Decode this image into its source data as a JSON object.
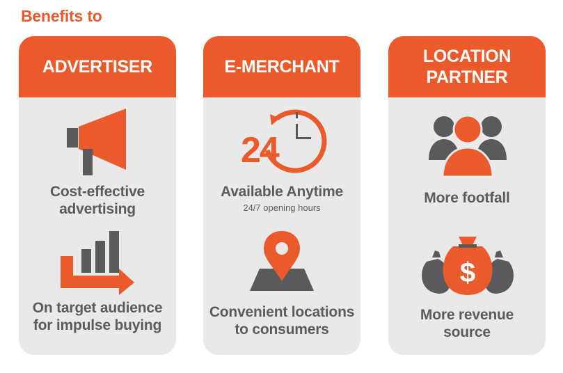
{
  "page": {
    "title": "Benefits to"
  },
  "colors": {
    "accent": "#ea5a2b",
    "card_bg": "#e9e9e9",
    "text": "#5b5c5e",
    "icon_dark": "#595a5c"
  },
  "cards": [
    {
      "header": "ADVERTISER",
      "items": [
        {
          "icon": "megaphone-icon",
          "label": "Cost-effective advertising"
        },
        {
          "icon": "bar-chart-arrow-icon",
          "label": "On target audience for impulse buying"
        }
      ]
    },
    {
      "header": "E-MERCHANT",
      "items": [
        {
          "icon": "24-hour-clock-icon",
          "icon_text": "24",
          "label": "Available Anytime",
          "sub": "24/7 opening hours"
        },
        {
          "icon": "map-pin-icon",
          "label": "Convenient locations to consumers"
        }
      ]
    },
    {
      "header": "LOCATION PARTNER",
      "items": [
        {
          "icon": "people-group-icon",
          "label": "More footfall"
        },
        {
          "icon": "money-bags-icon",
          "icon_text": "$",
          "label": "More revenue source"
        }
      ]
    }
  ]
}
